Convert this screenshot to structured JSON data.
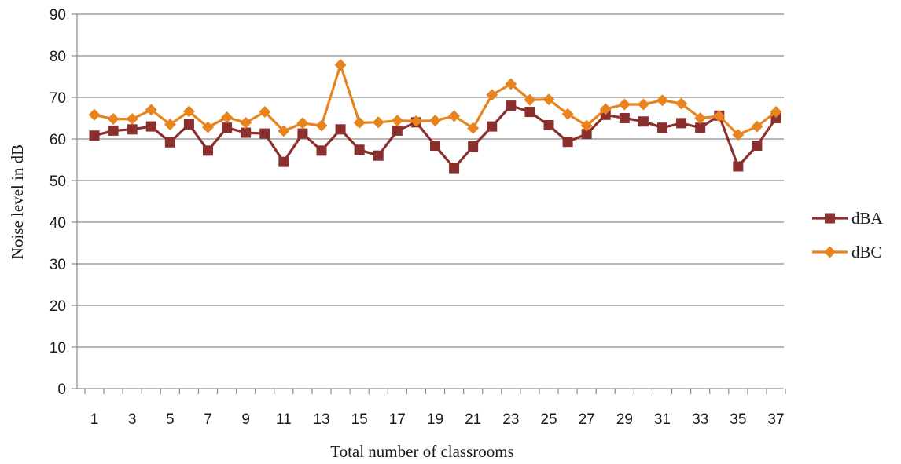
{
  "chart_data": {
    "type": "line",
    "title": "",
    "xlabel": "Total number of classrooms",
    "ylabel": "Noise  level in dB",
    "ylim": [
      0,
      90
    ],
    "yticks": [
      0,
      10,
      20,
      30,
      40,
      50,
      60,
      70,
      80,
      90
    ],
    "x": [
      1,
      2,
      3,
      4,
      5,
      6,
      7,
      8,
      9,
      10,
      11,
      12,
      13,
      14,
      15,
      16,
      17,
      18,
      19,
      20,
      21,
      22,
      23,
      24,
      25,
      26,
      27,
      28,
      29,
      30,
      31,
      32,
      33,
      34,
      35,
      36,
      37
    ],
    "xtick_labels": [
      "1",
      "3",
      "5",
      "7",
      "9",
      "11",
      "13",
      "15",
      "17",
      "19",
      "21",
      "23",
      "25",
      "27",
      "29",
      "31",
      "33",
      "35",
      "37"
    ],
    "grid": "horizontal",
    "legend_position": "right",
    "series": [
      {
        "name": "dBA",
        "color": "#8B2E2E",
        "marker": "square",
        "values": [
          60.8,
          62,
          62.3,
          63,
          59.2,
          63.5,
          57.2,
          62.7,
          61.5,
          61.3,
          54.5,
          61.3,
          57.2,
          62.3,
          57.4,
          56,
          62,
          64,
          58.4,
          53,
          58.2,
          63,
          68,
          66.5,
          63.3,
          59.3,
          61.2,
          65.8,
          65,
          64.2,
          62.7,
          63.8,
          62.7,
          65.6,
          53.4,
          58.4,
          65
        ]
      },
      {
        "name": "dBC",
        "color": "#E8841E",
        "marker": "diamond",
        "values": [
          65.8,
          64.8,
          64.8,
          67,
          63.5,
          66.6,
          62.8,
          65.2,
          63.9,
          66.5,
          61.9,
          63.8,
          63.2,
          77.8,
          63.9,
          64,
          64.4,
          64.3,
          64.4,
          65.5,
          62.6,
          70.6,
          73.2,
          69.4,
          69.5,
          66,
          63.2,
          67.2,
          68.3,
          68.3,
          69.3,
          68.5,
          65,
          65.5,
          61,
          63,
          66.5
        ]
      }
    ]
  }
}
